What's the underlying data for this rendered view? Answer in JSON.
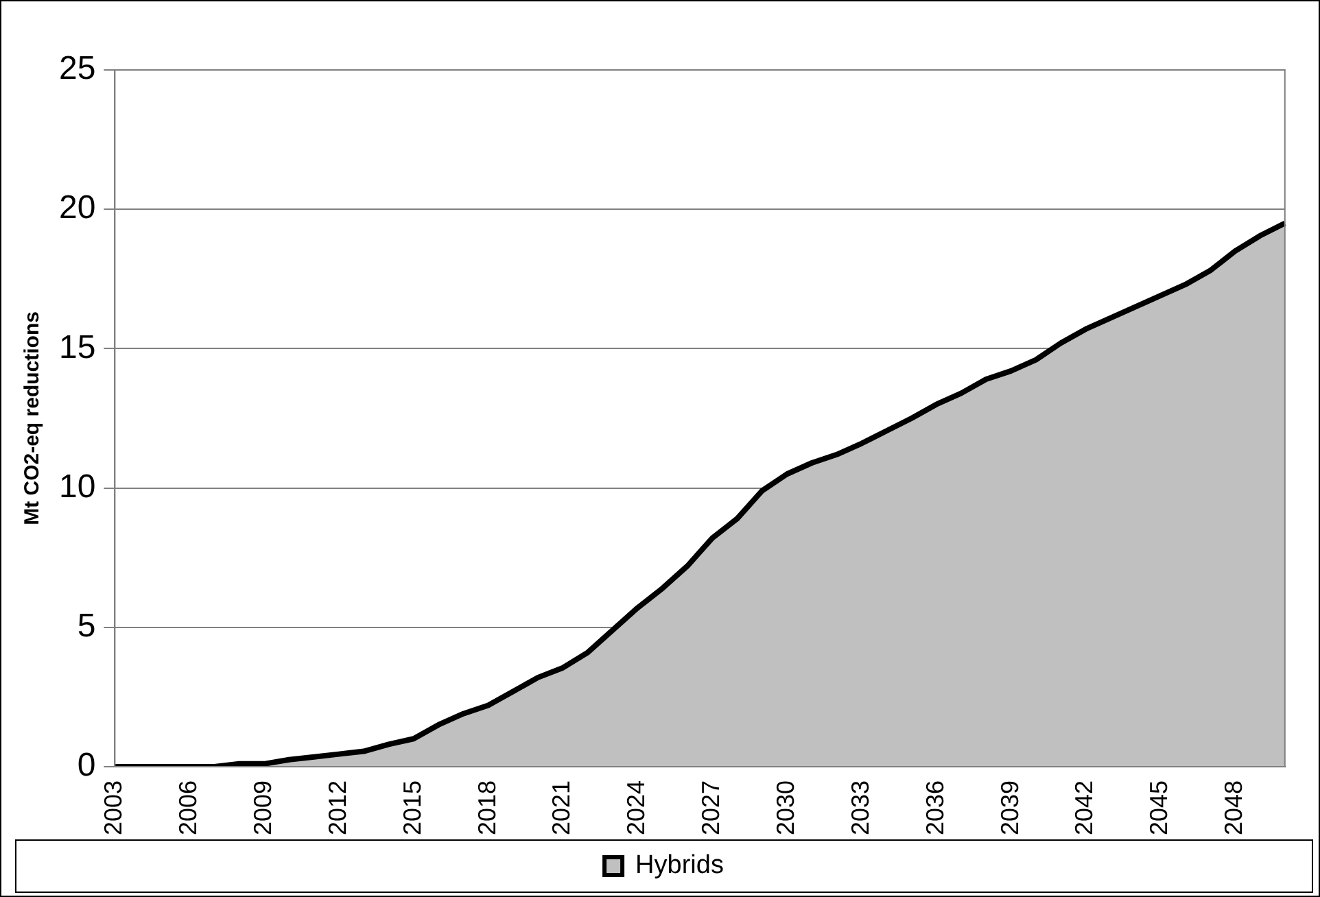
{
  "chart_data": {
    "type": "area",
    "ylabel": "Mt CO2-eq reductions",
    "categories": [
      "2003",
      null,
      null,
      "2006",
      null,
      null,
      "2009",
      null,
      null,
      "2012",
      null,
      null,
      "2015",
      null,
      null,
      "2018",
      null,
      null,
      "2021",
      null,
      null,
      "2024",
      null,
      null,
      "2027",
      null,
      null,
      "2030",
      null,
      null,
      "2033",
      null,
      null,
      "2036",
      null,
      null,
      "2039",
      null,
      null,
      "2042",
      null,
      null,
      "2045",
      null,
      null,
      "2048",
      null,
      null
    ],
    "series": [
      {
        "name": "Hybrids",
        "color": "#c0c0c0",
        "values": [
          0,
          0,
          0,
          0,
          0,
          0.1,
          0.1,
          0.25,
          0.35,
          0.45,
          0.55,
          0.8,
          1.0,
          1.5,
          1.9,
          2.2,
          2.7,
          3.2,
          3.55,
          4.1,
          4.9,
          5.7,
          6.4,
          7.2,
          8.2,
          8.9,
          9.9,
          10.5,
          10.9,
          11.2,
          11.6,
          12.05,
          12.5,
          13.0,
          13.4,
          13.9,
          14.2,
          14.6,
          15.2,
          15.7,
          16.1,
          16.5,
          16.9,
          17.3,
          17.8,
          18.5,
          19.05,
          19.5
        ]
      }
    ],
    "ylim": [
      0,
      25
    ],
    "yticks": [
      0,
      5,
      10,
      15,
      20,
      25
    ],
    "grid": "y",
    "legend": "bottom"
  }
}
